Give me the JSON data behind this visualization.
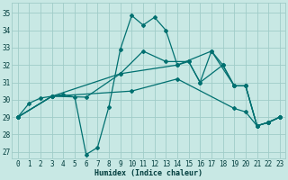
{
  "bg_color": "#c8e8e4",
  "grid_color": "#a0ccc8",
  "line_color": "#007070",
  "xlabel": "Humidex (Indice chaleur)",
  "xlim": [
    -0.5,
    23.5
  ],
  "ylim": [
    26.6,
    35.6
  ],
  "yticks": [
    27,
    28,
    29,
    30,
    31,
    32,
    33,
    34,
    35
  ],
  "xticks": [
    0,
    1,
    2,
    3,
    4,
    5,
    6,
    7,
    8,
    9,
    10,
    11,
    12,
    13,
    14,
    15,
    16,
    17,
    18,
    19,
    20,
    21,
    22,
    23
  ],
  "curve1_x": [
    0,
    1,
    2,
    3,
    4,
    5,
    6,
    7,
    8,
    9,
    10,
    11,
    12,
    13,
    14,
    15,
    16,
    17,
    18,
    19,
    20,
    21,
    22,
    23
  ],
  "curve1_y": [
    29.0,
    29.8,
    30.1,
    30.2,
    30.3,
    30.15,
    26.85,
    27.25,
    29.6,
    32.9,
    34.85,
    34.3,
    34.75,
    34.0,
    32.0,
    32.2,
    31.0,
    32.8,
    32.0,
    30.8,
    30.8,
    28.5,
    28.7,
    29.0
  ],
  "curve2_x": [
    0,
    3,
    6,
    9,
    11,
    13,
    15,
    16,
    18,
    19,
    20,
    21,
    22,
    23
  ],
  "curve2_y": [
    29.0,
    30.2,
    30.15,
    31.5,
    32.8,
    32.2,
    32.2,
    31.0,
    32.0,
    30.8,
    30.8,
    28.5,
    28.7,
    29.0
  ],
  "curve3_x": [
    0,
    3,
    9,
    14,
    17,
    19,
    20,
    21,
    22,
    23
  ],
  "curve3_y": [
    29.0,
    30.2,
    31.5,
    32.0,
    32.8,
    30.8,
    30.8,
    28.5,
    28.7,
    29.0
  ],
  "curve4_x": [
    0,
    3,
    10,
    14,
    19,
    20,
    21,
    22,
    23
  ],
  "curve4_y": [
    29.0,
    30.2,
    30.5,
    31.2,
    29.5,
    29.3,
    28.5,
    28.7,
    29.0
  ]
}
